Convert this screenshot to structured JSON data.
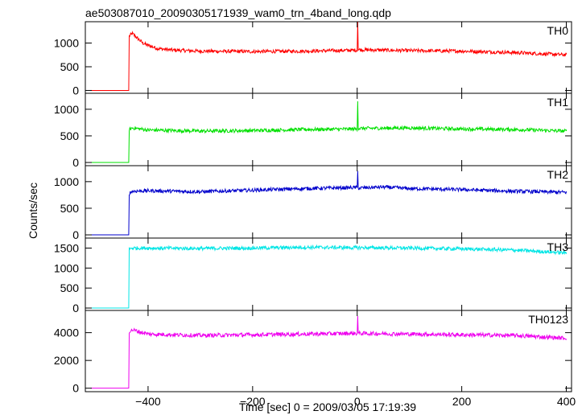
{
  "chart_data": {
    "type": "line",
    "title": "ae503087010_20090305171939_wam0_trn_4band_long.qdp",
    "xlabel": "Time [sec] 0 = 2009/03/05 17:19:39",
    "ylabel": "Counts/sec",
    "xlim": [
      -520,
      410
    ],
    "x_ticks": [
      -400,
      -200,
      0,
      200,
      400
    ],
    "grid": false,
    "panels": [
      {
        "name": "TH0",
        "color": "#ff0000",
        "ylim": [
          -60,
          1450
        ],
        "y_ticks": [
          0,
          500,
          1000
        ],
        "x": [
          -510,
          -437,
          -436,
          -430,
          -420,
          -410,
          -400,
          -380,
          -350,
          -300,
          -200,
          -100,
          0,
          1,
          2,
          100,
          200,
          300,
          400
        ],
        "y": [
          0,
          0,
          1150,
          1200,
          1100,
          1000,
          950,
          880,
          850,
          830,
          820,
          830,
          850,
          1450,
          860,
          840,
          830,
          800,
          750
        ]
      },
      {
        "name": "TH1",
        "color": "#00e000",
        "ylim": [
          -60,
          1300
        ],
        "y_ticks": [
          0,
          500,
          1000
        ],
        "x": [
          -510,
          -437,
          -436,
          -430,
          -400,
          -300,
          -200,
          -100,
          0,
          1,
          2,
          100,
          200,
          300,
          400
        ],
        "y": [
          0,
          0,
          620,
          650,
          610,
          590,
          600,
          620,
          630,
          1150,
          640,
          650,
          630,
          620,
          590
        ]
      },
      {
        "name": "TH2",
        "color": "#0000cc",
        "ylim": [
          -60,
          1300
        ],
        "y_ticks": [
          0,
          500,
          1000
        ],
        "x": [
          -510,
          -437,
          -436,
          -430,
          -400,
          -300,
          -200,
          -100,
          0,
          1,
          2,
          50,
          100,
          200,
          300,
          400
        ],
        "y": [
          0,
          0,
          780,
          820,
          830,
          810,
          840,
          870,
          890,
          1200,
          880,
          900,
          870,
          850,
          820,
          800
        ]
      },
      {
        "name": "TH3",
        "color": "#00e5e5",
        "ylim": [
          -60,
          1750
        ],
        "y_ticks": [
          0,
          500,
          1000,
          1500
        ],
        "x": [
          -510,
          -437,
          -436,
          -430,
          -400,
          -300,
          -200,
          -100,
          0,
          100,
          200,
          300,
          400
        ],
        "y": [
          0,
          0,
          1480,
          1500,
          1500,
          1490,
          1500,
          1520,
          1510,
          1500,
          1480,
          1450,
          1380
        ]
      },
      {
        "name": "TH0123",
        "color": "#ee00ee",
        "ylim": [
          -250,
          5600
        ],
        "y_ticks": [
          0,
          2000,
          4000
        ],
        "x": [
          -510,
          -437,
          -436,
          -430,
          -400,
          -300,
          -200,
          -100,
          0,
          1,
          2,
          100,
          200,
          300,
          400
        ],
        "y": [
          0,
          0,
          4100,
          4200,
          3900,
          3800,
          3850,
          3900,
          3950,
          5200,
          3950,
          3900,
          3850,
          3800,
          3600
        ]
      }
    ]
  }
}
